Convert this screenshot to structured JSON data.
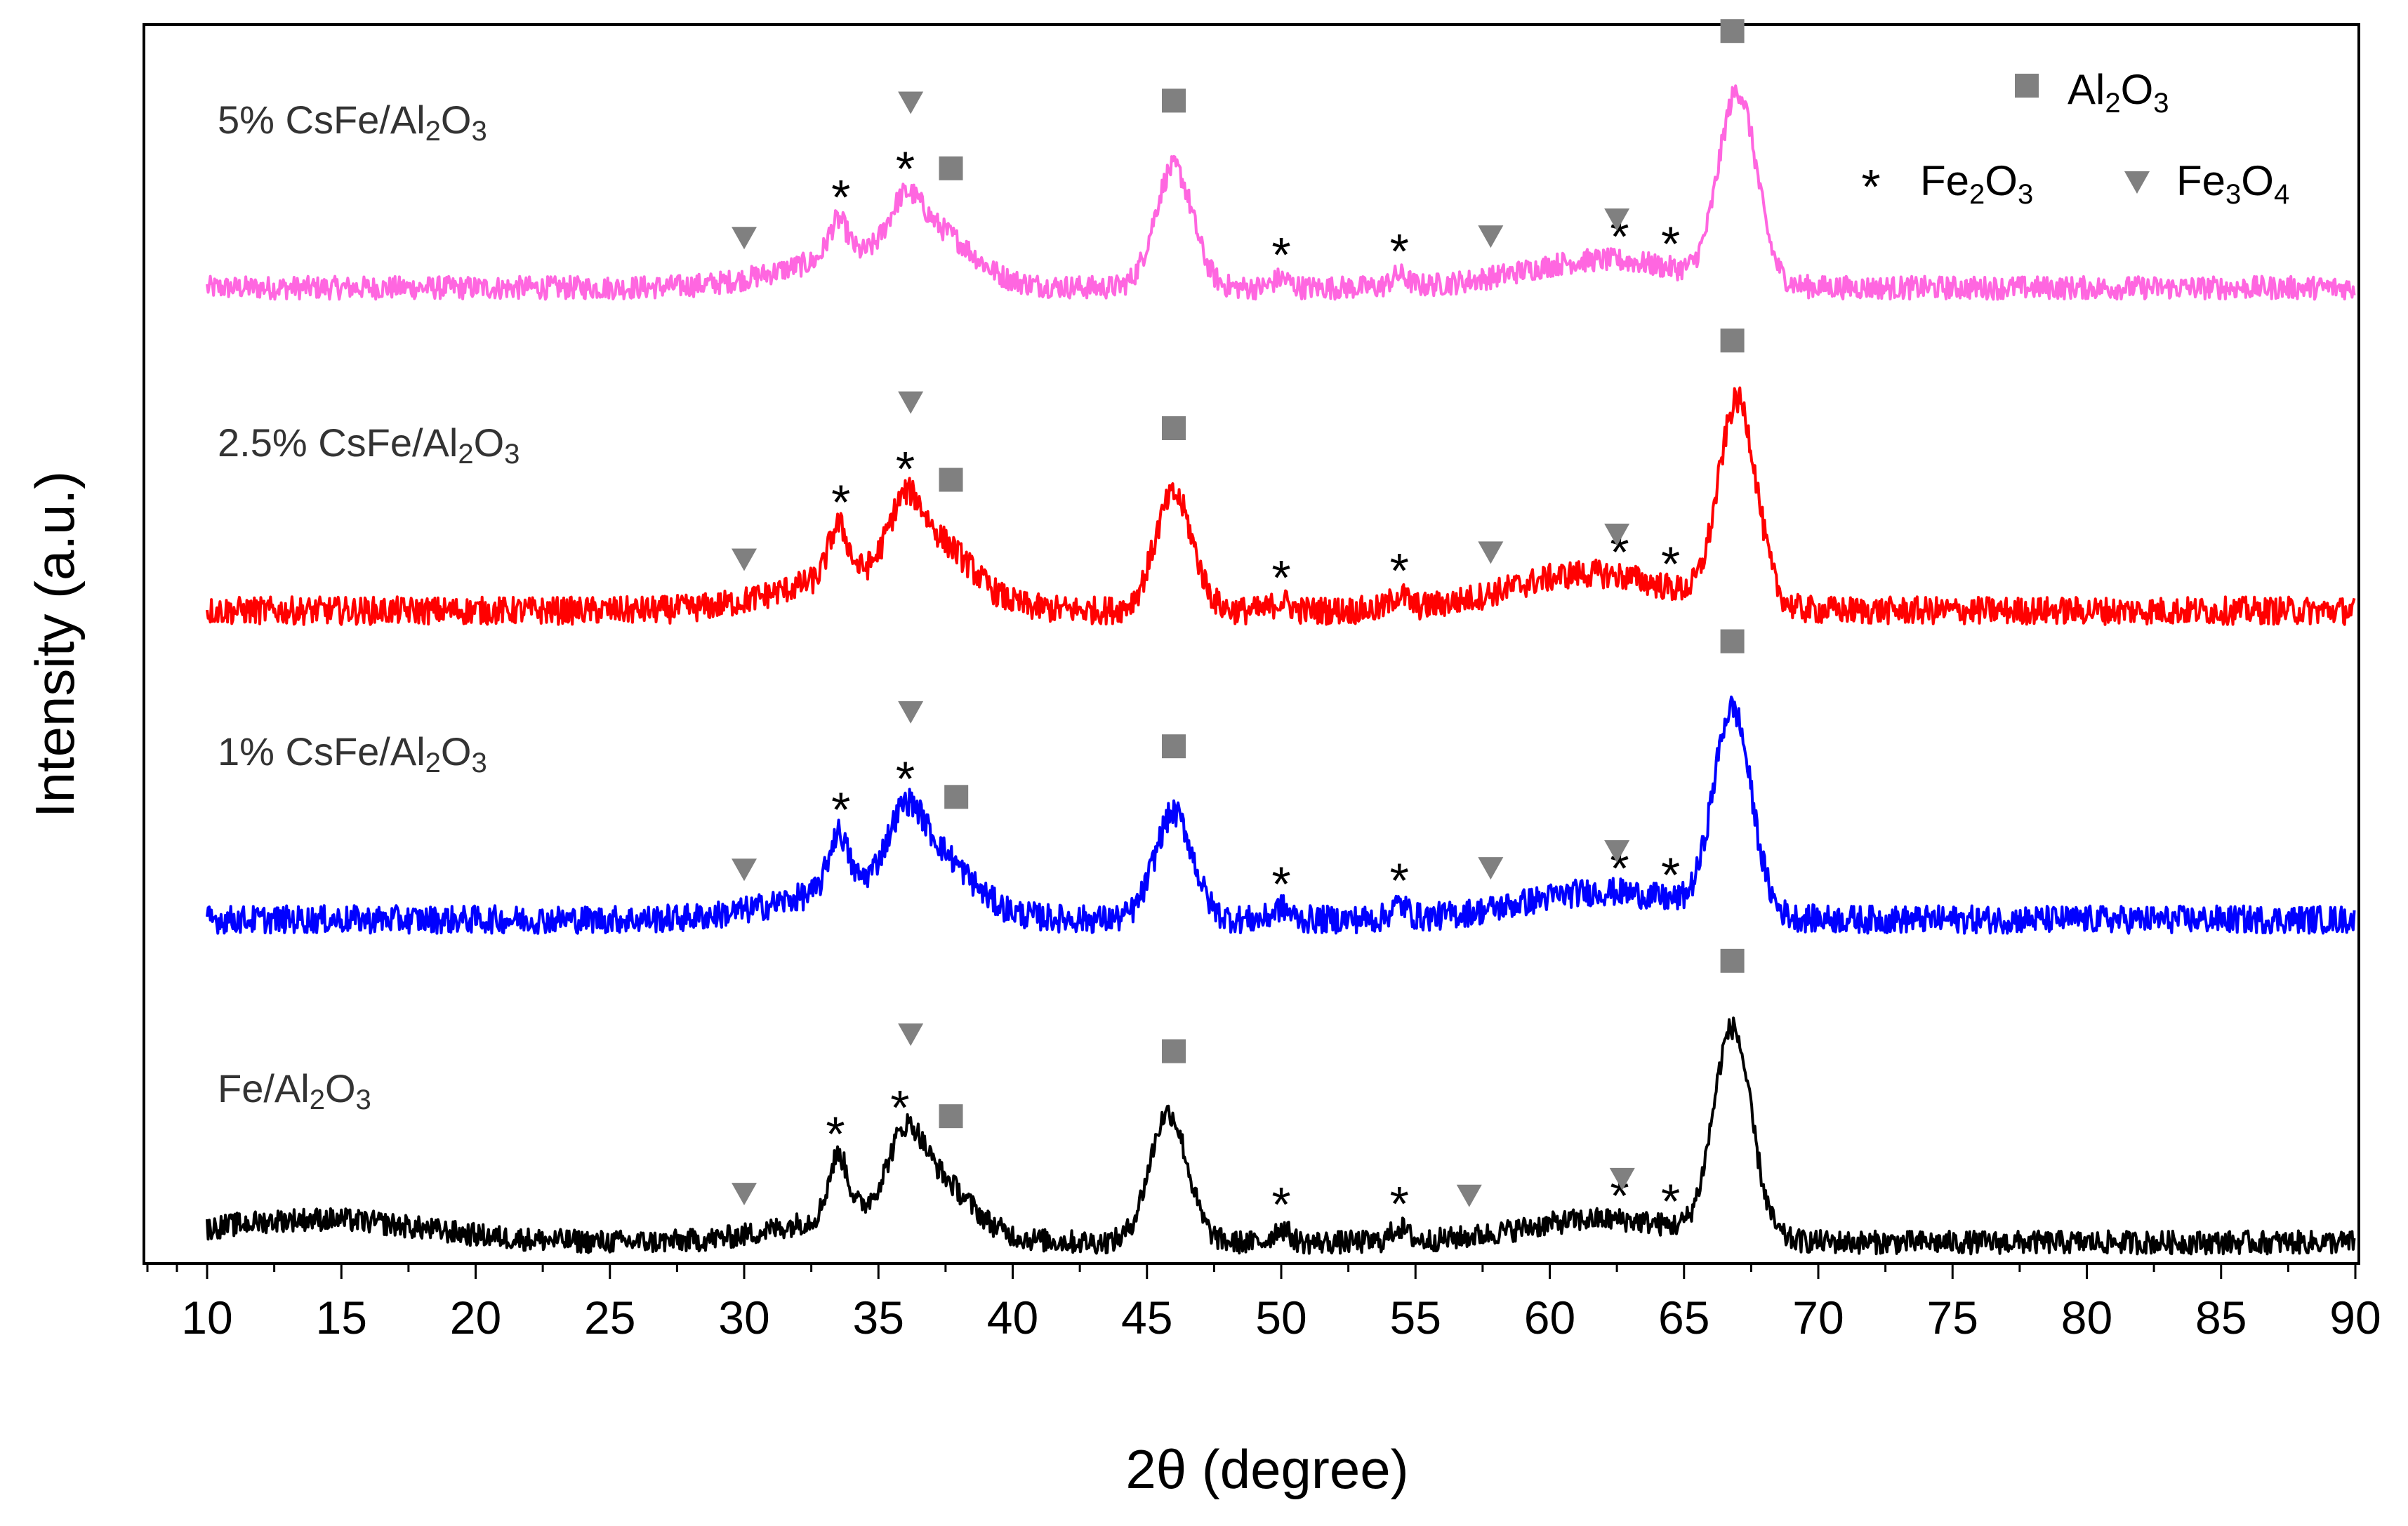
{
  "chart_data": {
    "type": "line",
    "title": "",
    "xlabel": "2θ (degree)",
    "ylabel": "Intensity (a.u.)",
    "xlim": [
      10,
      90
    ],
    "xticks": [
      "10",
      "15",
      "20",
      "25",
      "30",
      "35",
      "40",
      "45",
      "50",
      "55",
      "60",
      "65",
      "70",
      "75",
      "80",
      "85",
      "90"
    ],
    "y_ticks_shown": false,
    "grid": false,
    "legend": {
      "placement": "top-right",
      "entries": [
        {
          "marker": "square",
          "color": "#808080",
          "label": "Al2O3",
          "formula": [
            "Al",
            "2",
            "O",
            "3"
          ]
        },
        {
          "marker": "asterisk",
          "color": "#000000",
          "label": "Fe2O3",
          "formula": [
            "Fe",
            "2",
            "O",
            "3"
          ]
        },
        {
          "marker": "triangle-down",
          "color": "#808080",
          "label": "Fe3O4",
          "formula": [
            "Fe",
            "3",
            "O",
            "4"
          ]
        }
      ]
    },
    "series": [
      {
        "name": "5% CsFe/Al2O3",
        "label_text": "5% CsFe/Al2O3",
        "label_parts": [
          "5% CsFe/Al",
          "2",
          "O",
          "3"
        ],
        "color": "#ff66e0",
        "baseline": 0.56,
        "noise": 0.05,
        "peaks": [
          [
            33.5,
            0.16,
            0.35
          ],
          [
            36.0,
            0.2,
            0.6
          ],
          [
            37.3,
            0.16,
            1.2
          ],
          [
            46.0,
            0.52,
            0.7
          ],
          [
            67.0,
            0.82,
            0.7
          ],
          [
            34.5,
            0.14,
            2.8
          ],
          [
            62.0,
            0.12,
            3.0
          ],
          [
            50.0,
            0.04,
            0.3
          ],
          [
            54.4,
            0.05,
            0.3
          ]
        ],
        "markers": {
          "al2o3": [
            37.7,
            46.0,
            66.8
          ],
          "fe2o3": [
            33.6,
            36.0,
            50.0,
            54.4,
            62.6,
            64.5
          ],
          "fe3o4": [
            30.0,
            36.2,
            57.8,
            62.5
          ]
        }
      },
      {
        "name": "2.5% CsFe/Al2O3",
        "label_text": "2.5% CsFe/Al2O3",
        "label_parts": [
          "2.5% CsFe/Al",
          "2",
          "O",
          "3"
        ],
        "color": "#ff0000",
        "baseline": 0.55,
        "noise": 0.06,
        "peaks": [
          [
            33.5,
            0.22,
            0.35
          ],
          [
            36.0,
            0.26,
            0.6
          ],
          [
            37.3,
            0.2,
            1.2
          ],
          [
            46.0,
            0.5,
            0.7
          ],
          [
            67.0,
            0.88,
            0.7
          ],
          [
            34.5,
            0.16,
            2.8
          ],
          [
            61.5,
            0.16,
            3.0
          ],
          [
            50.0,
            0.04,
            0.3
          ],
          [
            54.4,
            0.06,
            0.3
          ]
        ],
        "markers": {
          "al2o3": [
            37.7,
            46.0,
            66.8
          ],
          "fe2o3": [
            33.6,
            36.0,
            50.0,
            54.4,
            62.6,
            64.5
          ],
          "fe3o4": [
            30.0,
            36.2,
            57.8,
            62.5
          ]
        }
      },
      {
        "name": "1% CsFe/Al2O3",
        "label_text": "1% CsFe/Al2O3",
        "label_parts": [
          "1% CsFe/Al",
          "2",
          "O",
          "3"
        ],
        "color": "#0000ff",
        "baseline": 0.55,
        "noise": 0.06,
        "peaks": [
          [
            33.5,
            0.24,
            0.35
          ],
          [
            36.0,
            0.22,
            0.6
          ],
          [
            37.0,
            0.22,
            1.3
          ],
          [
            46.0,
            0.46,
            0.7
          ],
          [
            66.8,
            0.88,
            0.7
          ],
          [
            34.5,
            0.14,
            2.8
          ],
          [
            62.0,
            0.12,
            3.0
          ],
          [
            50.0,
            0.05,
            0.3
          ],
          [
            54.4,
            0.06,
            0.3
          ]
        ],
        "markers": {
          "al2o3": [
            37.9,
            46.0,
            66.8
          ],
          "fe2o3": [
            33.6,
            36.0,
            50.0,
            54.4,
            62.6,
            64.5
          ],
          "fe3o4": [
            30.0,
            36.2,
            57.8,
            62.5
          ]
        }
      },
      {
        "name": "Fe/Al2O3",
        "label_text": "Fe/Al2O3",
        "label_parts": [
          "Fe/Al",
          "2",
          "O",
          "3"
        ],
        "color": "#000000",
        "baseline": 0.56,
        "noise": 0.05,
        "peaks": [
          [
            33.5,
            0.26,
            0.35
          ],
          [
            36.0,
            0.24,
            0.6
          ],
          [
            37.0,
            0.22,
            1.3
          ],
          [
            45.8,
            0.56,
            0.7
          ],
          [
            66.8,
            0.9,
            0.7
          ],
          [
            14.0,
            0.1,
            4.0
          ],
          [
            34.5,
            0.12,
            2.8
          ],
          [
            62.0,
            0.1,
            3.0
          ],
          [
            50.0,
            0.06,
            0.3
          ],
          [
            54.4,
            0.06,
            0.3
          ]
        ],
        "markers": {
          "al2o3": [
            37.7,
            46.0,
            66.8
          ],
          "fe2o3": [
            33.4,
            35.8,
            50.0,
            54.4,
            62.6,
            64.5
          ],
          "fe3o4": [
            30.0,
            36.2,
            57.0,
            62.7
          ]
        }
      }
    ]
  }
}
